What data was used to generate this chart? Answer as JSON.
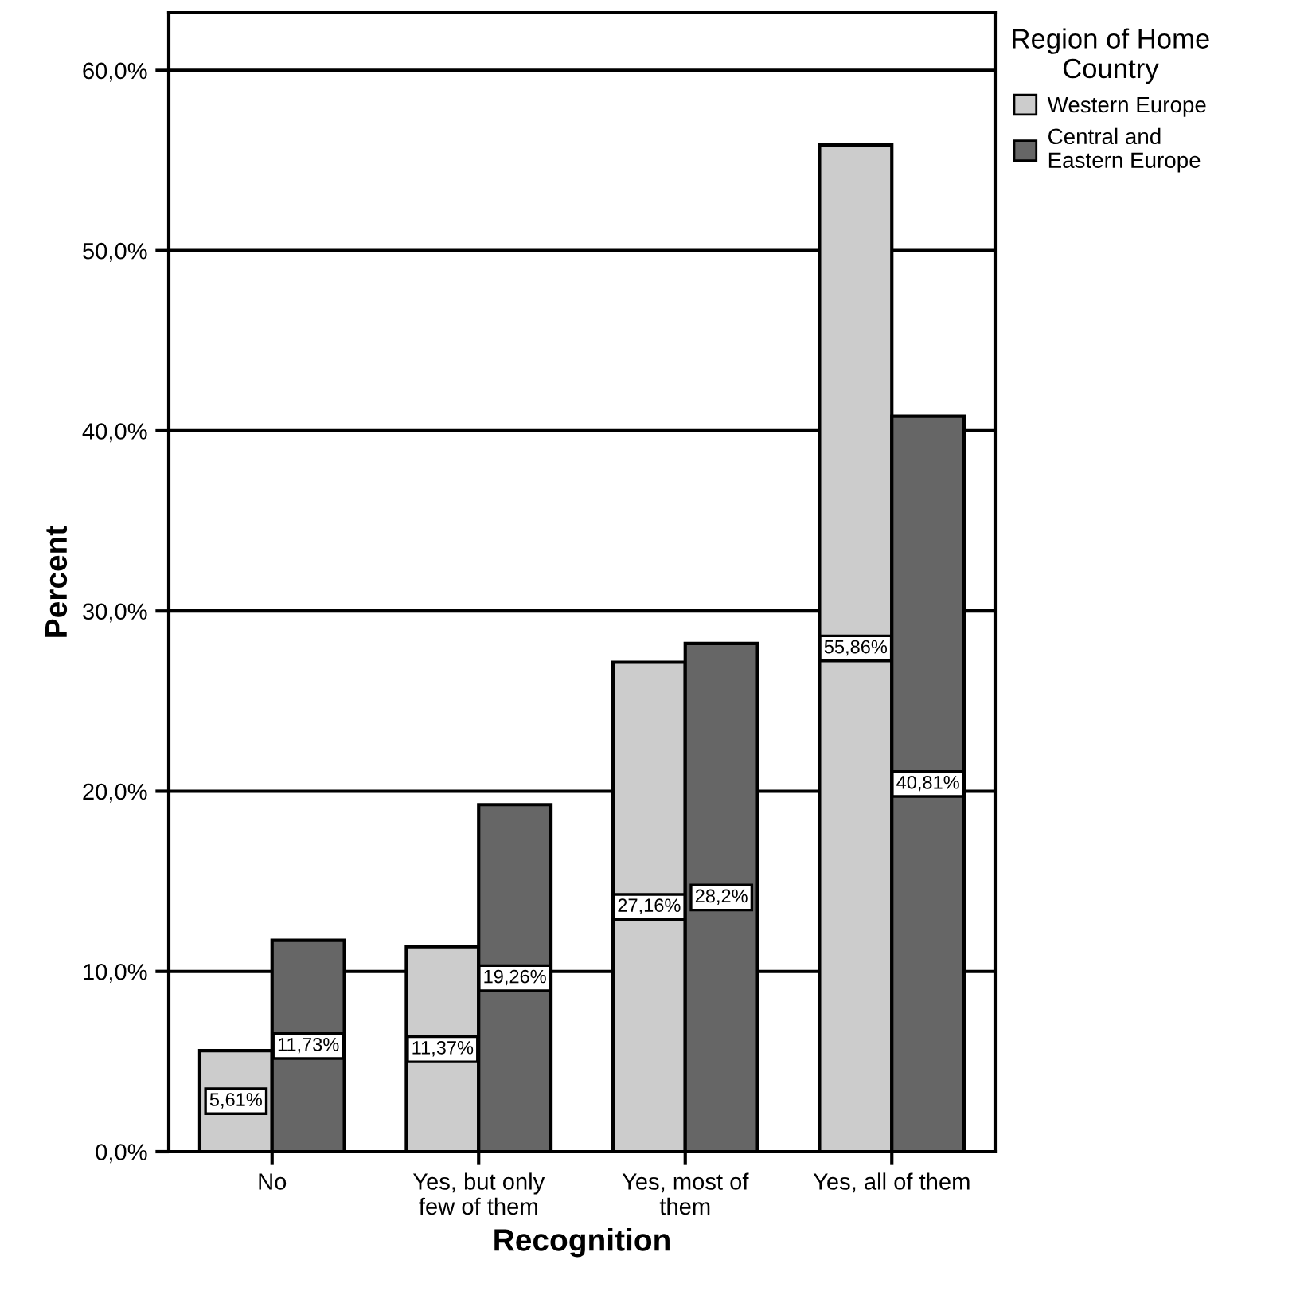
{
  "chart_data": {
    "type": "bar",
    "xlabel": "Recognition",
    "ylabel": "Percent",
    "legend_title": "Region of Home\nCountry",
    "categories": [
      "No",
      "Yes, but only\nfew of them",
      "Yes, most of\nthem",
      "Yes, all of them"
    ],
    "series": [
      {
        "name": "Western Europe",
        "color": "#cccccc",
        "values": [
          5.61,
          11.37,
          27.16,
          55.86
        ],
        "value_labels": [
          "5,61%",
          "11,37%",
          "27,16%",
          "55,86%"
        ]
      },
      {
        "name": "Central and\nEastern Europe",
        "color": "#666666",
        "values": [
          11.73,
          19.26,
          28.2,
          40.81
        ],
        "value_labels": [
          "11,73%",
          "19,26%",
          "28,2%",
          "40,81%"
        ]
      }
    ],
    "ylim": [
      0,
      63.2
    ],
    "yticks": [
      {
        "value": 0,
        "label": "0,0%"
      },
      {
        "value": 10,
        "label": "10,0%"
      },
      {
        "value": 20,
        "label": "20,0%"
      },
      {
        "value": 30,
        "label": "30,0%"
      },
      {
        "value": 40,
        "label": "40,0%"
      },
      {
        "value": 50,
        "label": "50,0%"
      },
      {
        "value": 60,
        "label": "60,0%"
      }
    ],
    "grid": "y",
    "legend": "top right"
  }
}
